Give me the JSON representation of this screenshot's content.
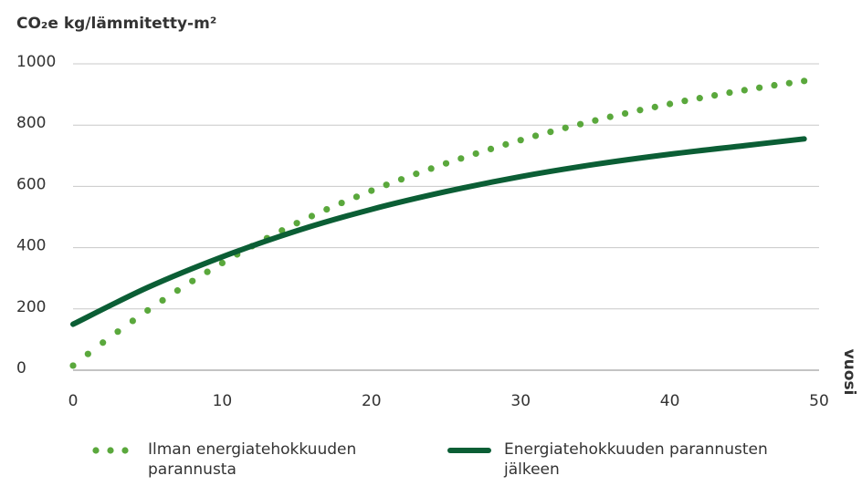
{
  "chart_data": {
    "type": "line",
    "y_label": "CO₂e kg/lämmitetty-m²",
    "x_label": "vuosi",
    "xlim": [
      0,
      50
    ],
    "xticks": [
      0,
      10,
      20,
      30,
      40,
      50
    ],
    "ylim": [
      0,
      1000
    ],
    "yticks": [
      0,
      200,
      400,
      600,
      800,
      1000
    ],
    "grid": true,
    "series": [
      {
        "name": "Ilman energiatehokkuuden parannusta",
        "color": "#5aa83c",
        "style": "dotted",
        "x": [
          0,
          1,
          2,
          3,
          4,
          5,
          6,
          7,
          8,
          9,
          10,
          11,
          12,
          13,
          14,
          15,
          16,
          17,
          18,
          19,
          20,
          21,
          22,
          23,
          24,
          25,
          26,
          27,
          28,
          29,
          30,
          31,
          32,
          33,
          34,
          35,
          36,
          37,
          38,
          39,
          40,
          41,
          42,
          43,
          44,
          45,
          46,
          47,
          48,
          49
        ],
        "values": [
          15,
          53,
          90,
          126,
          161,
          195,
          228,
          260,
          291,
          321,
          350,
          378,
          405,
          431,
          456,
          480,
          503,
          525,
          546,
          566,
          586,
          605,
          623,
          641,
          658,
          675,
          691,
          707,
          722,
          737,
          751,
          765,
          778,
          791,
          803,
          815,
          827,
          838,
          849,
          859,
          869,
          879,
          888,
          897,
          906,
          914,
          922,
          930,
          937,
          944
        ]
      },
      {
        "name": "Energiatehokkuuden parannusten jälkeen",
        "color": "#0b5e35",
        "style": "solid",
        "x": [
          0,
          5,
          10,
          15,
          20,
          25,
          30,
          35,
          40,
          45,
          49
        ],
        "values": [
          150,
          270,
          370,
          455,
          525,
          583,
          632,
          672,
          705,
          733,
          755
        ]
      }
    ]
  }
}
